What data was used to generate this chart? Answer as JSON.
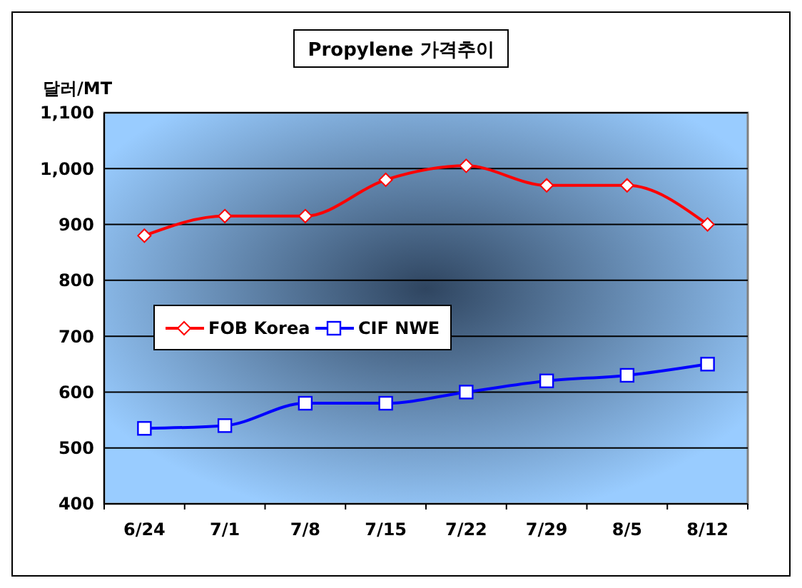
{
  "chart_data": {
    "type": "line",
    "title": "Propylene 가격추이",
    "ylabel": "달러/MT",
    "categories": [
      "6/24",
      "7/1",
      "7/8",
      "7/15",
      "7/22",
      "7/29",
      "8/5",
      "8/12"
    ],
    "series": [
      {
        "name": "FOB Korea",
        "color": "#ff0000",
        "marker": "diamond",
        "values": [
          880,
          915,
          915,
          980,
          1005,
          970,
          970,
          900
        ]
      },
      {
        "name": "CIF NWE",
        "color": "#0000ff",
        "marker": "square",
        "values": [
          535,
          540,
          580,
          580,
          600,
          620,
          630,
          650
        ]
      }
    ],
    "ylim": [
      400,
      1100
    ],
    "yticks": [
      400,
      500,
      600,
      700,
      800,
      900,
      {
        "value": 1000,
        "label": "1,000"
      },
      {
        "value": 1100,
        "label": "1,100"
      }
    ],
    "grid": "y",
    "legend": "left",
    "line_style": "solid"
  }
}
